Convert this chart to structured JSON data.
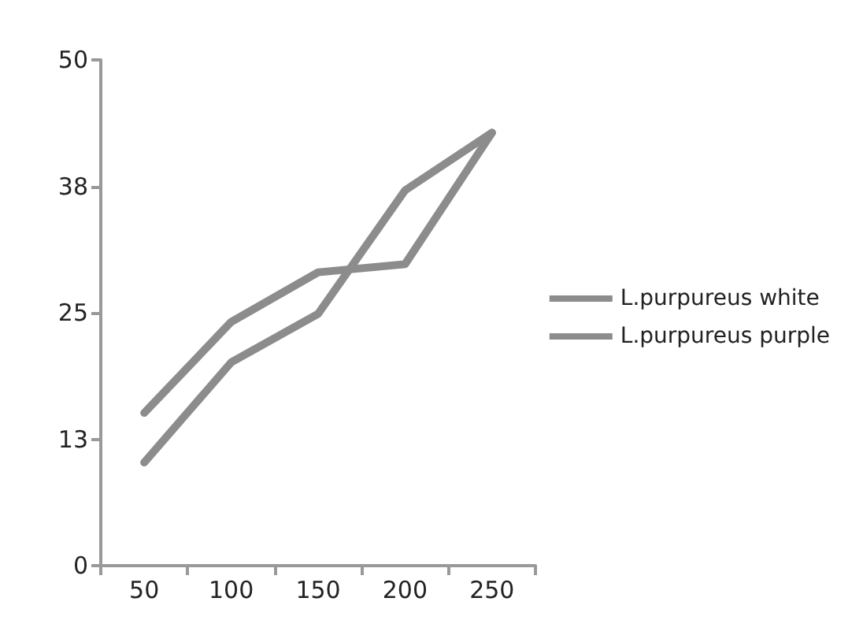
{
  "chart_data": {
    "type": "line",
    "categories": [
      "50",
      "100",
      "150",
      "200",
      "250"
    ],
    "series": [
      {
        "name": "L.purpureus white",
        "color": "#8c8c8c",
        "values": [
          15.1,
          24.1,
          29,
          29.8,
          42.8
        ]
      },
      {
        "name": "L.purpureus purple",
        "color": "#8c8c8c",
        "values": [
          10.2,
          20.1,
          24.9,
          37.1,
          42.8
        ]
      }
    ],
    "ylim": [
      0,
      50
    ],
    "yticks": [
      0,
      {
        "value": 12.5,
        "label": "13"
      },
      25,
      {
        "value": 37.5,
        "label": "38"
      },
      50
    ],
    "grid": false,
    "legend": "right",
    "marker": "none",
    "line_style": "solid"
  }
}
